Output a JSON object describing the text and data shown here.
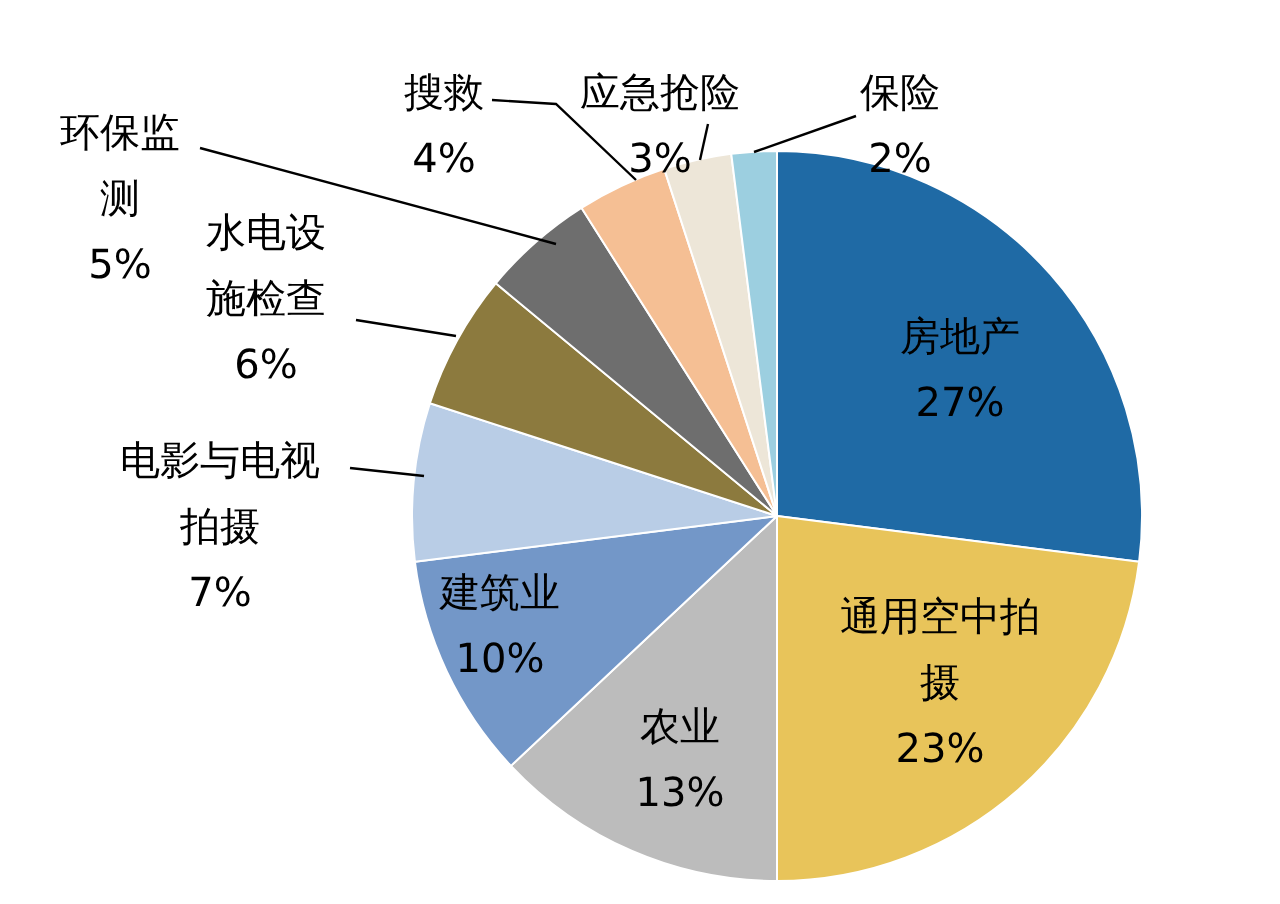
{
  "chart_data": {
    "type": "pie",
    "categories": [
      "房地产",
      "通用空中拍摄",
      "农业",
      "建筑业",
      "电影与电视拍摄",
      "水电设施检查",
      "环保监测",
      "搜救",
      "应急抢险",
      "保险"
    ],
    "values": [
      27,
      23,
      13,
      10,
      7,
      6,
      5,
      4,
      3,
      2
    ],
    "value_labels": [
      "27%",
      "23%",
      "13%",
      "10%",
      "7%",
      "6%",
      "5%",
      "4%",
      "3%",
      "2%"
    ],
    "colors": [
      "#1f6aa5",
      "#e8c45a",
      "#bcbcbc",
      "#7397c8",
      "#b9cde6",
      "#8c7a3e",
      "#6e6e6e",
      "#f5bf94",
      "#ede6d8",
      "#9ccfe0"
    ],
    "legend": false
  }
}
